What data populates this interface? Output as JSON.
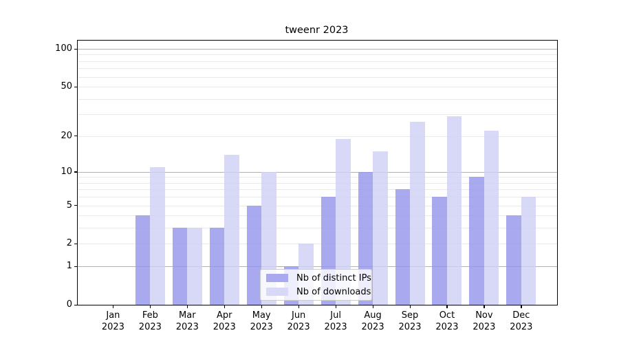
{
  "chart_data": {
    "type": "bar",
    "title": "tweenr 2023",
    "categories": [
      "Jan",
      "Feb",
      "Mar",
      "Apr",
      "May",
      "Jun",
      "Jul",
      "Aug",
      "Sep",
      "Oct",
      "Nov",
      "Dec"
    ],
    "year_label": "2023",
    "series": [
      {
        "name": "Nb of distinct IPs",
        "slug": "distinct-ips",
        "fill": "rgba(148,148,236,0.8)",
        "legend_fill": "#a9a9f0",
        "values": [
          0,
          4,
          3,
          3,
          5,
          1,
          6,
          10,
          7,
          6,
          9,
          4
        ]
      },
      {
        "name": "Nb of downloads",
        "slug": "downloads",
        "fill": "rgba(206,206,245,0.8)",
        "legend_fill": "#d8d8f7",
        "values": [
          0,
          11,
          3,
          14,
          10,
          2,
          19,
          15,
          26,
          29,
          22,
          6
        ]
      }
    ],
    "yscale": "log10(1+y)",
    "ylim": [
      0,
      116
    ],
    "yticks": [
      0,
      1,
      2,
      5,
      10,
      20,
      50,
      100
    ],
    "grid_major": [
      1,
      10,
      100
    ],
    "grid_minor": [
      2,
      3,
      4,
      5,
      6,
      7,
      8,
      9,
      20,
      30,
      40,
      50,
      60,
      70,
      80,
      90
    ],
    "legend_position": "lower center",
    "colors": {
      "grid_major": "#b2b2b2",
      "grid_minor": "#e9e9e9",
      "spine": "#000000"
    }
  }
}
